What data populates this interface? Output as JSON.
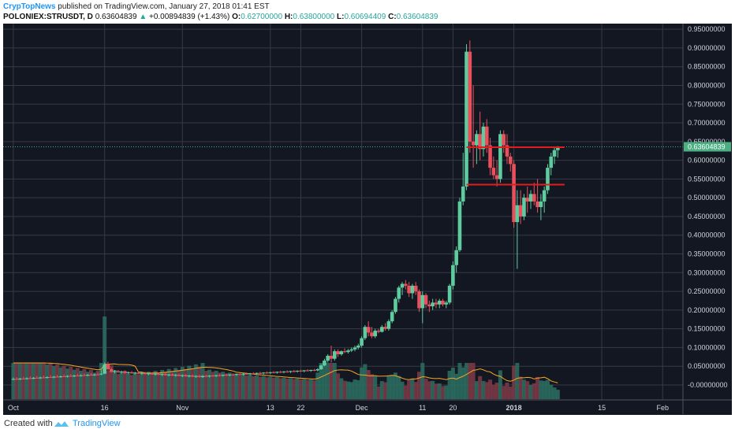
{
  "header": {
    "author": "CrypTopNews",
    "published_text": "published on TradingView.com, January 27, 2018 01:41 EST",
    "symbol": "POLONIEX:STRUSDT, D",
    "last": "0.63604839",
    "change": "+0.00894839 (+1.43%)",
    "o_label": "O:",
    "o_val": "0.62700000",
    "h_label": "H:",
    "h_val": "0.63800000",
    "l_label": "L:",
    "l_val": "0.60694409",
    "c_label": "C:",
    "c_val": "0.63604839"
  },
  "footer": {
    "created_with": "Created with",
    "brand": "TradingView"
  },
  "colors": {
    "background": "#131722",
    "grid": "#363a45",
    "up": "#26a69a",
    "down": "#ef5350",
    "up_fill": "#5fcca0",
    "down_fill": "#e8505b",
    "resistance": "#e01e1e",
    "ma": "#f5a623",
    "axis_text": "#d1d4dc",
    "price_label_bg": "#4caf82"
  },
  "chart_data": {
    "type": "candlestick",
    "symbol": "POLONIEX:STRUSDT",
    "interval": "D",
    "y_axis": {
      "ticks": [
        "0.95000000",
        "0.90000000",
        "0.85000000",
        "0.80000000",
        "0.75000000",
        "0.70000000",
        "0.65000000",
        "0.60000000",
        "0.55000000",
        "0.50000000",
        "0.45000000",
        "0.40000000",
        "0.35000000",
        "0.30000000",
        "0.25000000",
        "0.20000000",
        "0.15000000",
        "0.10000000",
        "0.05000000",
        "-0.00000000"
      ],
      "ylim": [
        -0.04,
        0.965
      ],
      "last_price_label": "0.63604839",
      "last_price": 0.63604839
    },
    "x_axis": {
      "ticks": [
        "Oct",
        "16",
        "Nov",
        "13",
        "22",
        "Dec",
        "11",
        "20",
        "2018",
        "15",
        "Feb"
      ],
      "tick_days": [
        0,
        27,
        50,
        76,
        85,
        103,
        121,
        130,
        148,
        174,
        192
      ],
      "xlim": [
        -3,
        198
      ]
    },
    "grid": true,
    "candles_ohlc_by_day": [
      [
        0,
        0.015,
        0.02,
        0.013,
        0.016
      ],
      [
        1,
        0.016,
        0.021,
        0.014,
        0.015
      ],
      [
        2,
        0.015,
        0.019,
        0.013,
        0.017
      ],
      [
        3,
        0.017,
        0.022,
        0.015,
        0.016
      ],
      [
        4,
        0.016,
        0.02,
        0.014,
        0.018
      ],
      [
        5,
        0.018,
        0.023,
        0.016,
        0.017
      ],
      [
        6,
        0.017,
        0.021,
        0.015,
        0.019
      ],
      [
        7,
        0.019,
        0.024,
        0.017,
        0.018
      ],
      [
        8,
        0.018,
        0.022,
        0.016,
        0.02
      ],
      [
        9,
        0.02,
        0.025,
        0.018,
        0.019
      ],
      [
        10,
        0.019,
        0.023,
        0.017,
        0.021
      ],
      [
        11,
        0.021,
        0.026,
        0.019,
        0.02
      ],
      [
        12,
        0.02,
        0.024,
        0.018,
        0.022
      ],
      [
        13,
        0.022,
        0.027,
        0.02,
        0.021
      ],
      [
        14,
        0.021,
        0.025,
        0.019,
        0.023
      ],
      [
        15,
        0.023,
        0.028,
        0.021,
        0.022
      ],
      [
        16,
        0.022,
        0.026,
        0.02,
        0.024
      ],
      [
        17,
        0.024,
        0.029,
        0.022,
        0.023
      ],
      [
        18,
        0.023,
        0.027,
        0.021,
        0.025
      ],
      [
        19,
        0.025,
        0.03,
        0.023,
        0.024
      ],
      [
        20,
        0.024,
        0.028,
        0.022,
        0.026
      ],
      [
        21,
        0.026,
        0.031,
        0.024,
        0.025
      ],
      [
        22,
        0.025,
        0.029,
        0.023,
        0.027
      ],
      [
        23,
        0.027,
        0.032,
        0.025,
        0.026
      ],
      [
        24,
        0.026,
        0.03,
        0.024,
        0.028
      ],
      [
        25,
        0.028,
        0.033,
        0.026,
        0.027
      ],
      [
        26,
        0.028,
        0.04,
        0.026,
        0.03
      ],
      [
        27,
        0.03,
        0.06,
        0.029,
        0.055
      ],
      [
        28,
        0.055,
        0.062,
        0.038,
        0.042
      ],
      [
        29,
        0.042,
        0.046,
        0.033,
        0.035
      ],
      [
        30,
        0.035,
        0.04,
        0.031,
        0.037
      ],
      [
        31,
        0.037,
        0.04,
        0.032,
        0.034
      ],
      [
        32,
        0.034,
        0.038,
        0.03,
        0.036
      ],
      [
        33,
        0.036,
        0.039,
        0.03,
        0.032
      ],
      [
        34,
        0.032,
        0.036,
        0.029,
        0.034
      ],
      [
        35,
        0.034,
        0.037,
        0.03,
        0.031
      ],
      [
        36,
        0.031,
        0.035,
        0.028,
        0.033
      ],
      [
        37,
        0.033,
        0.036,
        0.029,
        0.03
      ],
      [
        38,
        0.03,
        0.034,
        0.027,
        0.032
      ],
      [
        39,
        0.032,
        0.035,
        0.028,
        0.029
      ],
      [
        40,
        0.029,
        0.033,
        0.026,
        0.031
      ],
      [
        41,
        0.031,
        0.034,
        0.027,
        0.028
      ],
      [
        42,
        0.028,
        0.032,
        0.025,
        0.03
      ],
      [
        43,
        0.03,
        0.033,
        0.026,
        0.027
      ],
      [
        44,
        0.027,
        0.031,
        0.024,
        0.029
      ],
      [
        45,
        0.029,
        0.032,
        0.025,
        0.026
      ],
      [
        46,
        0.026,
        0.03,
        0.023,
        0.028
      ],
      [
        47,
        0.028,
        0.031,
        0.024,
        0.025
      ],
      [
        48,
        0.025,
        0.029,
        0.022,
        0.027
      ],
      [
        49,
        0.027,
        0.03,
        0.023,
        0.024
      ],
      [
        50,
        0.024,
        0.028,
        0.021,
        0.026
      ],
      [
        51,
        0.026,
        0.029,
        0.022,
        0.023
      ],
      [
        52,
        0.023,
        0.027,
        0.02,
        0.025
      ],
      [
        53,
        0.025,
        0.028,
        0.021,
        0.022
      ],
      [
        54,
        0.022,
        0.026,
        0.019,
        0.024
      ],
      [
        55,
        0.024,
        0.027,
        0.02,
        0.021
      ],
      [
        56,
        0.021,
        0.026,
        0.019,
        0.024
      ],
      [
        57,
        0.024,
        0.027,
        0.021,
        0.023
      ],
      [
        58,
        0.023,
        0.026,
        0.02,
        0.025
      ],
      [
        59,
        0.025,
        0.028,
        0.022,
        0.024
      ],
      [
        60,
        0.024,
        0.027,
        0.021,
        0.026
      ],
      [
        61,
        0.026,
        0.029,
        0.023,
        0.025
      ],
      [
        62,
        0.025,
        0.028,
        0.022,
        0.027
      ],
      [
        63,
        0.027,
        0.03,
        0.024,
        0.026
      ],
      [
        64,
        0.026,
        0.029,
        0.023,
        0.028
      ],
      [
        65,
        0.028,
        0.031,
        0.025,
        0.027
      ],
      [
        66,
        0.027,
        0.03,
        0.024,
        0.029
      ],
      [
        67,
        0.029,
        0.032,
        0.026,
        0.028
      ],
      [
        68,
        0.028,
        0.031,
        0.025,
        0.03
      ],
      [
        69,
        0.03,
        0.033,
        0.027,
        0.029
      ],
      [
        70,
        0.029,
        0.032,
        0.026,
        0.031
      ],
      [
        71,
        0.031,
        0.034,
        0.028,
        0.03
      ],
      [
        72,
        0.03,
        0.033,
        0.027,
        0.032
      ],
      [
        73,
        0.032,
        0.035,
        0.029,
        0.031
      ],
      [
        74,
        0.031,
        0.034,
        0.028,
        0.033
      ],
      [
        75,
        0.033,
        0.036,
        0.03,
        0.032
      ],
      [
        76,
        0.032,
        0.035,
        0.029,
        0.034
      ],
      [
        77,
        0.034,
        0.037,
        0.031,
        0.033
      ],
      [
        78,
        0.033,
        0.036,
        0.03,
        0.035
      ],
      [
        79,
        0.035,
        0.038,
        0.032,
        0.034
      ],
      [
        80,
        0.034,
        0.037,
        0.031,
        0.036
      ],
      [
        81,
        0.036,
        0.039,
        0.033,
        0.035
      ],
      [
        82,
        0.035,
        0.038,
        0.032,
        0.037
      ],
      [
        83,
        0.037,
        0.04,
        0.034,
        0.036
      ],
      [
        84,
        0.036,
        0.039,
        0.033,
        0.038
      ],
      [
        85,
        0.038,
        0.041,
        0.035,
        0.037
      ],
      [
        86,
        0.037,
        0.04,
        0.034,
        0.039
      ],
      [
        87,
        0.039,
        0.042,
        0.036,
        0.038
      ],
      [
        88,
        0.038,
        0.041,
        0.035,
        0.04
      ],
      [
        89,
        0.04,
        0.043,
        0.037,
        0.039
      ],
      [
        90,
        0.039,
        0.045,
        0.036,
        0.042
      ],
      [
        91,
        0.042,
        0.055,
        0.04,
        0.052
      ],
      [
        92,
        0.052,
        0.07,
        0.05,
        0.065
      ],
      [
        93,
        0.065,
        0.082,
        0.06,
        0.078
      ],
      [
        94,
        0.078,
        0.105,
        0.06,
        0.07
      ],
      [
        95,
        0.07,
        0.095,
        0.065,
        0.09
      ],
      [
        96,
        0.09,
        0.095,
        0.075,
        0.082
      ],
      [
        97,
        0.082,
        0.092,
        0.078,
        0.09
      ],
      [
        98,
        0.09,
        0.098,
        0.085,
        0.088
      ],
      [
        99,
        0.088,
        0.096,
        0.084,
        0.092
      ],
      [
        100,
        0.092,
        0.1,
        0.088,
        0.095
      ],
      [
        101,
        0.095,
        0.105,
        0.09,
        0.1
      ],
      [
        102,
        0.1,
        0.11,
        0.095,
        0.105
      ],
      [
        103,
        0.105,
        0.13,
        0.1,
        0.125
      ],
      [
        104,
        0.125,
        0.16,
        0.12,
        0.155
      ],
      [
        105,
        0.155,
        0.17,
        0.13,
        0.14
      ],
      [
        106,
        0.14,
        0.155,
        0.125,
        0.13
      ],
      [
        107,
        0.13,
        0.15,
        0.125,
        0.145
      ],
      [
        108,
        0.145,
        0.15,
        0.138,
        0.142
      ],
      [
        109,
        0.142,
        0.16,
        0.14,
        0.155
      ],
      [
        110,
        0.155,
        0.165,
        0.145,
        0.15
      ],
      [
        111,
        0.15,
        0.175,
        0.145,
        0.17
      ],
      [
        112,
        0.17,
        0.2,
        0.165,
        0.195
      ],
      [
        113,
        0.195,
        0.235,
        0.19,
        0.23
      ],
      [
        114,
        0.23,
        0.265,
        0.22,
        0.26
      ],
      [
        115,
        0.26,
        0.275,
        0.24,
        0.27
      ],
      [
        116,
        0.27,
        0.28,
        0.255,
        0.265
      ],
      [
        117,
        0.265,
        0.275,
        0.235,
        0.245
      ],
      [
        118,
        0.245,
        0.27,
        0.23,
        0.265
      ],
      [
        119,
        0.265,
        0.275,
        0.24,
        0.25
      ],
      [
        120,
        0.25,
        0.255,
        0.195,
        0.205
      ],
      [
        121,
        0.205,
        0.25,
        0.165,
        0.24
      ],
      [
        122,
        0.24,
        0.245,
        0.205,
        0.215
      ],
      [
        123,
        0.215,
        0.225,
        0.195,
        0.21
      ],
      [
        124,
        0.21,
        0.23,
        0.2,
        0.22
      ],
      [
        125,
        0.22,
        0.23,
        0.205,
        0.215
      ],
      [
        126,
        0.215,
        0.23,
        0.205,
        0.225
      ],
      [
        127,
        0.225,
        0.23,
        0.21,
        0.215
      ],
      [
        128,
        0.215,
        0.225,
        0.205,
        0.22
      ],
      [
        129,
        0.22,
        0.27,
        0.215,
        0.265
      ],
      [
        130,
        0.265,
        0.33,
        0.255,
        0.32
      ],
      [
        131,
        0.32,
        0.37,
        0.3,
        0.36
      ],
      [
        132,
        0.36,
        0.5,
        0.355,
        0.49
      ],
      [
        133,
        0.49,
        0.62,
        0.48,
        0.53
      ],
      [
        134,
        0.53,
        0.91,
        0.52,
        0.89
      ],
      [
        135,
        0.89,
        0.92,
        0.62,
        0.65
      ],
      [
        136,
        0.65,
        0.8,
        0.58,
        0.64
      ],
      [
        137,
        0.64,
        0.68,
        0.59,
        0.67
      ],
      [
        138,
        0.67,
        0.73,
        0.6,
        0.63
      ],
      [
        139,
        0.63,
        0.7,
        0.61,
        0.69
      ],
      [
        140,
        0.69,
        0.71,
        0.62,
        0.64
      ],
      [
        141,
        0.64,
        0.66,
        0.56,
        0.58
      ],
      [
        142,
        0.58,
        0.61,
        0.55,
        0.56
      ],
      [
        143,
        0.56,
        0.6,
        0.53,
        0.55
      ],
      [
        144,
        0.55,
        0.68,
        0.54,
        0.67
      ],
      [
        145,
        0.67,
        0.68,
        0.62,
        0.64
      ],
      [
        146,
        0.64,
        0.67,
        0.59,
        0.61
      ],
      [
        147,
        0.61,
        0.62,
        0.57,
        0.59
      ],
      [
        148,
        0.59,
        0.6,
        0.42,
        0.435
      ],
      [
        149,
        0.435,
        0.52,
        0.31,
        0.48
      ],
      [
        150,
        0.48,
        0.52,
        0.43,
        0.45
      ],
      [
        151,
        0.45,
        0.51,
        0.44,
        0.5
      ],
      [
        152,
        0.5,
        0.53,
        0.46,
        0.49
      ],
      [
        153,
        0.49,
        0.52,
        0.47,
        0.51
      ],
      [
        154,
        0.51,
        0.54,
        0.48,
        0.49
      ],
      [
        155,
        0.49,
        0.55,
        0.46,
        0.475
      ],
      [
        156,
        0.475,
        0.51,
        0.44,
        0.49
      ],
      [
        157,
        0.49,
        0.53,
        0.46,
        0.52
      ],
      [
        158,
        0.52,
        0.59,
        0.51,
        0.58
      ],
      [
        159,
        0.58,
        0.62,
        0.56,
        0.61
      ],
      [
        160,
        0.61,
        0.635,
        0.59,
        0.627
      ],
      [
        161,
        0.627,
        0.638,
        0.6069,
        0.636
      ]
    ],
    "horizontal_lines": [
      {
        "day_start": 134,
        "day_end": 163,
        "price": 0.635
      },
      {
        "day_start": 134,
        "day_end": 163,
        "price": 0.535
      }
    ]
  }
}
